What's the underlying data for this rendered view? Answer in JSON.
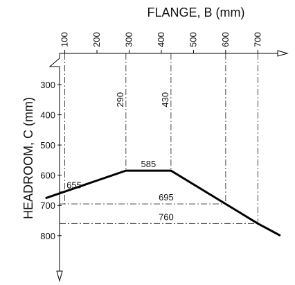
{
  "chart_data": {
    "type": "line",
    "xlabel": "FLANGE, B (mm)",
    "ylabel": "HEADROOM, C (mm)",
    "x_ticks": [
      "100",
      "200",
      "300",
      "400",
      "500",
      "600",
      "700"
    ],
    "y_ticks": [
      "300",
      "400",
      "500",
      "600",
      "700",
      "800"
    ],
    "xlim": [
      40,
      770
    ],
    "ylim": [
      200,
      930
    ],
    "y_axis_inverted": true,
    "series": [
      {
        "x": [
          40,
          290,
          430,
          600,
          700,
          770
        ],
        "y": [
          676,
          585,
          585,
          695,
          760,
          800
        ]
      }
    ],
    "reference_lines": {
      "vertical": [
        100,
        290,
        430,
        600,
        700
      ],
      "horizontal": [
        655,
        695,
        760
      ]
    },
    "annotations": [
      {
        "text": "290",
        "x": 290,
        "y": 350,
        "rotated": true
      },
      {
        "text": "430",
        "x": 430,
        "y": 350,
        "rotated": true
      },
      {
        "text": "585",
        "x": 360,
        "y": 585
      },
      {
        "text": "655",
        "x": 55,
        "y": 655
      },
      {
        "text": "695",
        "x": 415,
        "y": 695
      },
      {
        "text": "760",
        "x": 415,
        "y": 760
      }
    ],
    "colors": {
      "line": "#000000",
      "reference": "#333333"
    }
  }
}
